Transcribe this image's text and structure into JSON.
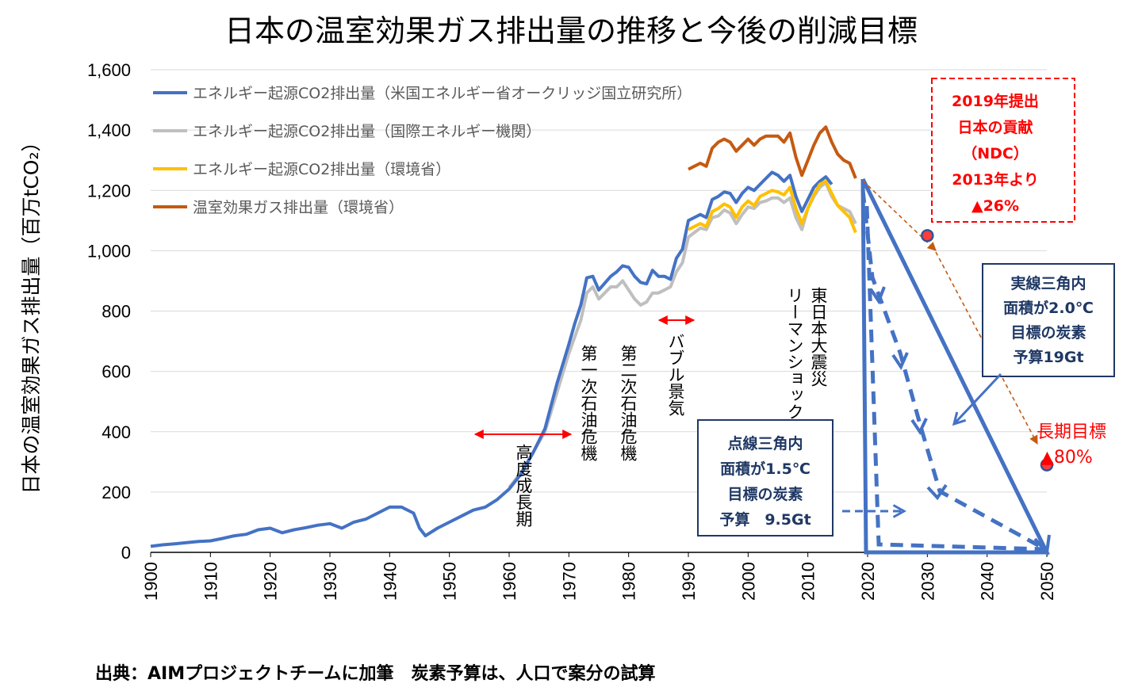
{
  "chart_data": {
    "type": "line",
    "title": "日本の温室効果ガス排出量の推移と今後の削減目標",
    "ylabel": "日本の温室効果ガス排出量（百万tCO₂）",
    "xlim": [
      1900,
      2050
    ],
    "ylim": [
      0,
      1600
    ],
    "yticks": [
      "0",
      "200",
      "400",
      "600",
      "800",
      "1,000",
      "1,200",
      "1,400",
      "1,600"
    ],
    "xticks": [
      "1900",
      "1910",
      "1920",
      "1930",
      "1940",
      "1950",
      "1960",
      "1970",
      "1980",
      "1990",
      "2000",
      "2010",
      "2020",
      "2030",
      "2040",
      "2050"
    ],
    "grid": "horizontal",
    "legend_position": "top-left",
    "series": [
      {
        "name": "エネルギー起源CO2排出量（米国エネルギー省オークリッジ国立研究所）",
        "color": "#4472c4",
        "points": [
          [
            1900,
            20
          ],
          [
            1902,
            25
          ],
          [
            1904,
            28
          ],
          [
            1906,
            32
          ],
          [
            1908,
            36
          ],
          [
            1910,
            38
          ],
          [
            1912,
            46
          ],
          [
            1914,
            55
          ],
          [
            1916,
            60
          ],
          [
            1918,
            75
          ],
          [
            1920,
            80
          ],
          [
            1922,
            65
          ],
          [
            1924,
            75
          ],
          [
            1926,
            82
          ],
          [
            1928,
            90
          ],
          [
            1930,
            95
          ],
          [
            1932,
            80
          ],
          [
            1934,
            100
          ],
          [
            1936,
            110
          ],
          [
            1938,
            130
          ],
          [
            1940,
            150
          ],
          [
            1942,
            150
          ],
          [
            1944,
            130
          ],
          [
            1945,
            80
          ],
          [
            1946,
            55
          ],
          [
            1948,
            80
          ],
          [
            1950,
            100
          ],
          [
            1952,
            120
          ],
          [
            1954,
            140
          ],
          [
            1956,
            150
          ],
          [
            1958,
            175
          ],
          [
            1960,
            210
          ],
          [
            1962,
            260
          ],
          [
            1964,
            330
          ],
          [
            1966,
            410
          ],
          [
            1968,
            560
          ],
          [
            1970,
            690
          ],
          [
            1971,
            760
          ],
          [
            1972,
            820
          ],
          [
            1973,
            910
          ],
          [
            1974,
            915
          ],
          [
            1975,
            870
          ],
          [
            1977,
            915
          ],
          [
            1978,
            930
          ],
          [
            1979,
            950
          ],
          [
            1980,
            945
          ],
          [
            1981,
            915
          ],
          [
            1982,
            895
          ],
          [
            1983,
            890
          ],
          [
            1984,
            935
          ],
          [
            1985,
            915
          ],
          [
            1986,
            915
          ],
          [
            1987,
            905
          ],
          [
            1988,
            975
          ],
          [
            1989,
            1005
          ],
          [
            1990,
            1100
          ],
          [
            1991,
            1110
          ],
          [
            1992,
            1120
          ],
          [
            1993,
            1110
          ],
          [
            1994,
            1170
          ],
          [
            1995,
            1180
          ],
          [
            1996,
            1195
          ],
          [
            1997,
            1190
          ],
          [
            1998,
            1160
          ],
          [
            1999,
            1190
          ],
          [
            2000,
            1210
          ],
          [
            2001,
            1200
          ],
          [
            2002,
            1220
          ],
          [
            2003,
            1240
          ],
          [
            2004,
            1260
          ],
          [
            2005,
            1250
          ],
          [
            2006,
            1230
          ],
          [
            2007,
            1250
          ],
          [
            2008,
            1180
          ],
          [
            2009,
            1130
          ],
          [
            2010,
            1170
          ],
          [
            2011,
            1210
          ],
          [
            2012,
            1230
          ],
          [
            2013,
            1245
          ],
          [
            2014,
            1220
          ]
        ]
      },
      {
        "name": "エネルギー起源CO2排出量（国際エネルギー機関）",
        "color": "#bfbfbf",
        "points": [
          [
            1960,
            215
          ],
          [
            1962,
            265
          ],
          [
            1964,
            330
          ],
          [
            1966,
            400
          ],
          [
            1968,
            530
          ],
          [
            1970,
            660
          ],
          [
            1972,
            770
          ],
          [
            1973,
            860
          ],
          [
            1974,
            880
          ],
          [
            1975,
            840
          ],
          [
            1976,
            860
          ],
          [
            1977,
            880
          ],
          [
            1978,
            880
          ],
          [
            1979,
            900
          ],
          [
            1980,
            870
          ],
          [
            1981,
            840
          ],
          [
            1982,
            820
          ],
          [
            1983,
            830
          ],
          [
            1984,
            860
          ],
          [
            1985,
            860
          ],
          [
            1986,
            870
          ],
          [
            1987,
            880
          ],
          [
            1988,
            930
          ],
          [
            1989,
            960
          ],
          [
            1990,
            1045
          ],
          [
            1991,
            1060
          ],
          [
            1992,
            1075
          ],
          [
            1993,
            1070
          ],
          [
            1994,
            1110
          ],
          [
            1995,
            1115
          ],
          [
            1996,
            1135
          ],
          [
            1997,
            1125
          ],
          [
            1998,
            1090
          ],
          [
            1999,
            1120
          ],
          [
            2000,
            1145
          ],
          [
            2001,
            1140
          ],
          [
            2002,
            1160
          ],
          [
            2003,
            1165
          ],
          [
            2004,
            1175
          ],
          [
            2005,
            1175
          ],
          [
            2006,
            1160
          ],
          [
            2007,
            1175
          ],
          [
            2008,
            1110
          ],
          [
            2009,
            1070
          ],
          [
            2010,
            1140
          ],
          [
            2011,
            1180
          ],
          [
            2012,
            1210
          ],
          [
            2013,
            1225
          ],
          [
            2014,
            1180
          ],
          [
            2015,
            1150
          ],
          [
            2016,
            1140
          ],
          [
            2017,
            1130
          ],
          [
            2018,
            1090
          ]
        ]
      },
      {
        "name": "エネルギー起源CO2排出量（環境省）",
        "color": "#ffc000",
        "points": [
          [
            1990,
            1070
          ],
          [
            1991,
            1080
          ],
          [
            1992,
            1090
          ],
          [
            1993,
            1080
          ],
          [
            1994,
            1130
          ],
          [
            1995,
            1140
          ],
          [
            1996,
            1155
          ],
          [
            1997,
            1145
          ],
          [
            1998,
            1110
          ],
          [
            1999,
            1145
          ],
          [
            2000,
            1165
          ],
          [
            2001,
            1150
          ],
          [
            2002,
            1180
          ],
          [
            2003,
            1190
          ],
          [
            2004,
            1200
          ],
          [
            2005,
            1195
          ],
          [
            2006,
            1185
          ],
          [
            2007,
            1210
          ],
          [
            2008,
            1140
          ],
          [
            2009,
            1090
          ],
          [
            2010,
            1140
          ],
          [
            2011,
            1185
          ],
          [
            2012,
            1220
          ],
          [
            2013,
            1230
          ],
          [
            2014,
            1190
          ],
          [
            2015,
            1150
          ],
          [
            2016,
            1130
          ],
          [
            2017,
            1110
          ],
          [
            2018,
            1060
          ]
        ]
      },
      {
        "name": "温室効果ガス排出量（環境省）",
        "color": "#c55a11",
        "points": [
          [
            1990,
            1270
          ],
          [
            1991,
            1280
          ],
          [
            1992,
            1290
          ],
          [
            1993,
            1280
          ],
          [
            1994,
            1340
          ],
          [
            1995,
            1360
          ],
          [
            1996,
            1370
          ],
          [
            1997,
            1360
          ],
          [
            1998,
            1330
          ],
          [
            1999,
            1350
          ],
          [
            2000,
            1370
          ],
          [
            2001,
            1350
          ],
          [
            2002,
            1370
          ],
          [
            2003,
            1380
          ],
          [
            2004,
            1380
          ],
          [
            2005,
            1380
          ],
          [
            2006,
            1360
          ],
          [
            2007,
            1390
          ],
          [
            2008,
            1310
          ],
          [
            2009,
            1250
          ],
          [
            2010,
            1300
          ],
          [
            2011,
            1350
          ],
          [
            2012,
            1390
          ],
          [
            2013,
            1410
          ],
          [
            2014,
            1360
          ],
          [
            2015,
            1320
          ],
          [
            2016,
            1300
          ],
          [
            2017,
            1290
          ],
          [
            2018,
            1240
          ]
        ]
      }
    ],
    "targets": [
      {
        "x": 2030,
        "y": 1050
      },
      {
        "x": 2050,
        "y": 290
      }
    ],
    "annotations": {
      "period_kodo": "高度成長期",
      "oil1": "第一次石油危機",
      "oil2": "第二次石油危機",
      "bubble": "バブル景気",
      "lehman": "リーマンショック",
      "quake": "東日本大震災",
      "long_term": "長期目標",
      "long_term_pct": "▲80%",
      "ndc_lines": [
        "2019年提出",
        "日本の貢献",
        "（NDC）",
        "2013年より",
        "▲26%"
      ],
      "solid_box_lines": [
        "実線三角内",
        "面積が2.0℃",
        "目標の炭素",
        "予算19Gt"
      ],
      "dotted_box_lines": [
        "点線三角内",
        "面積が1.5℃",
        "目標の炭素",
        "予算　9.5Gt"
      ]
    },
    "source": "出典：AIMプロジェクトチームに加筆　炭素予算は、人口で案分の試算"
  }
}
